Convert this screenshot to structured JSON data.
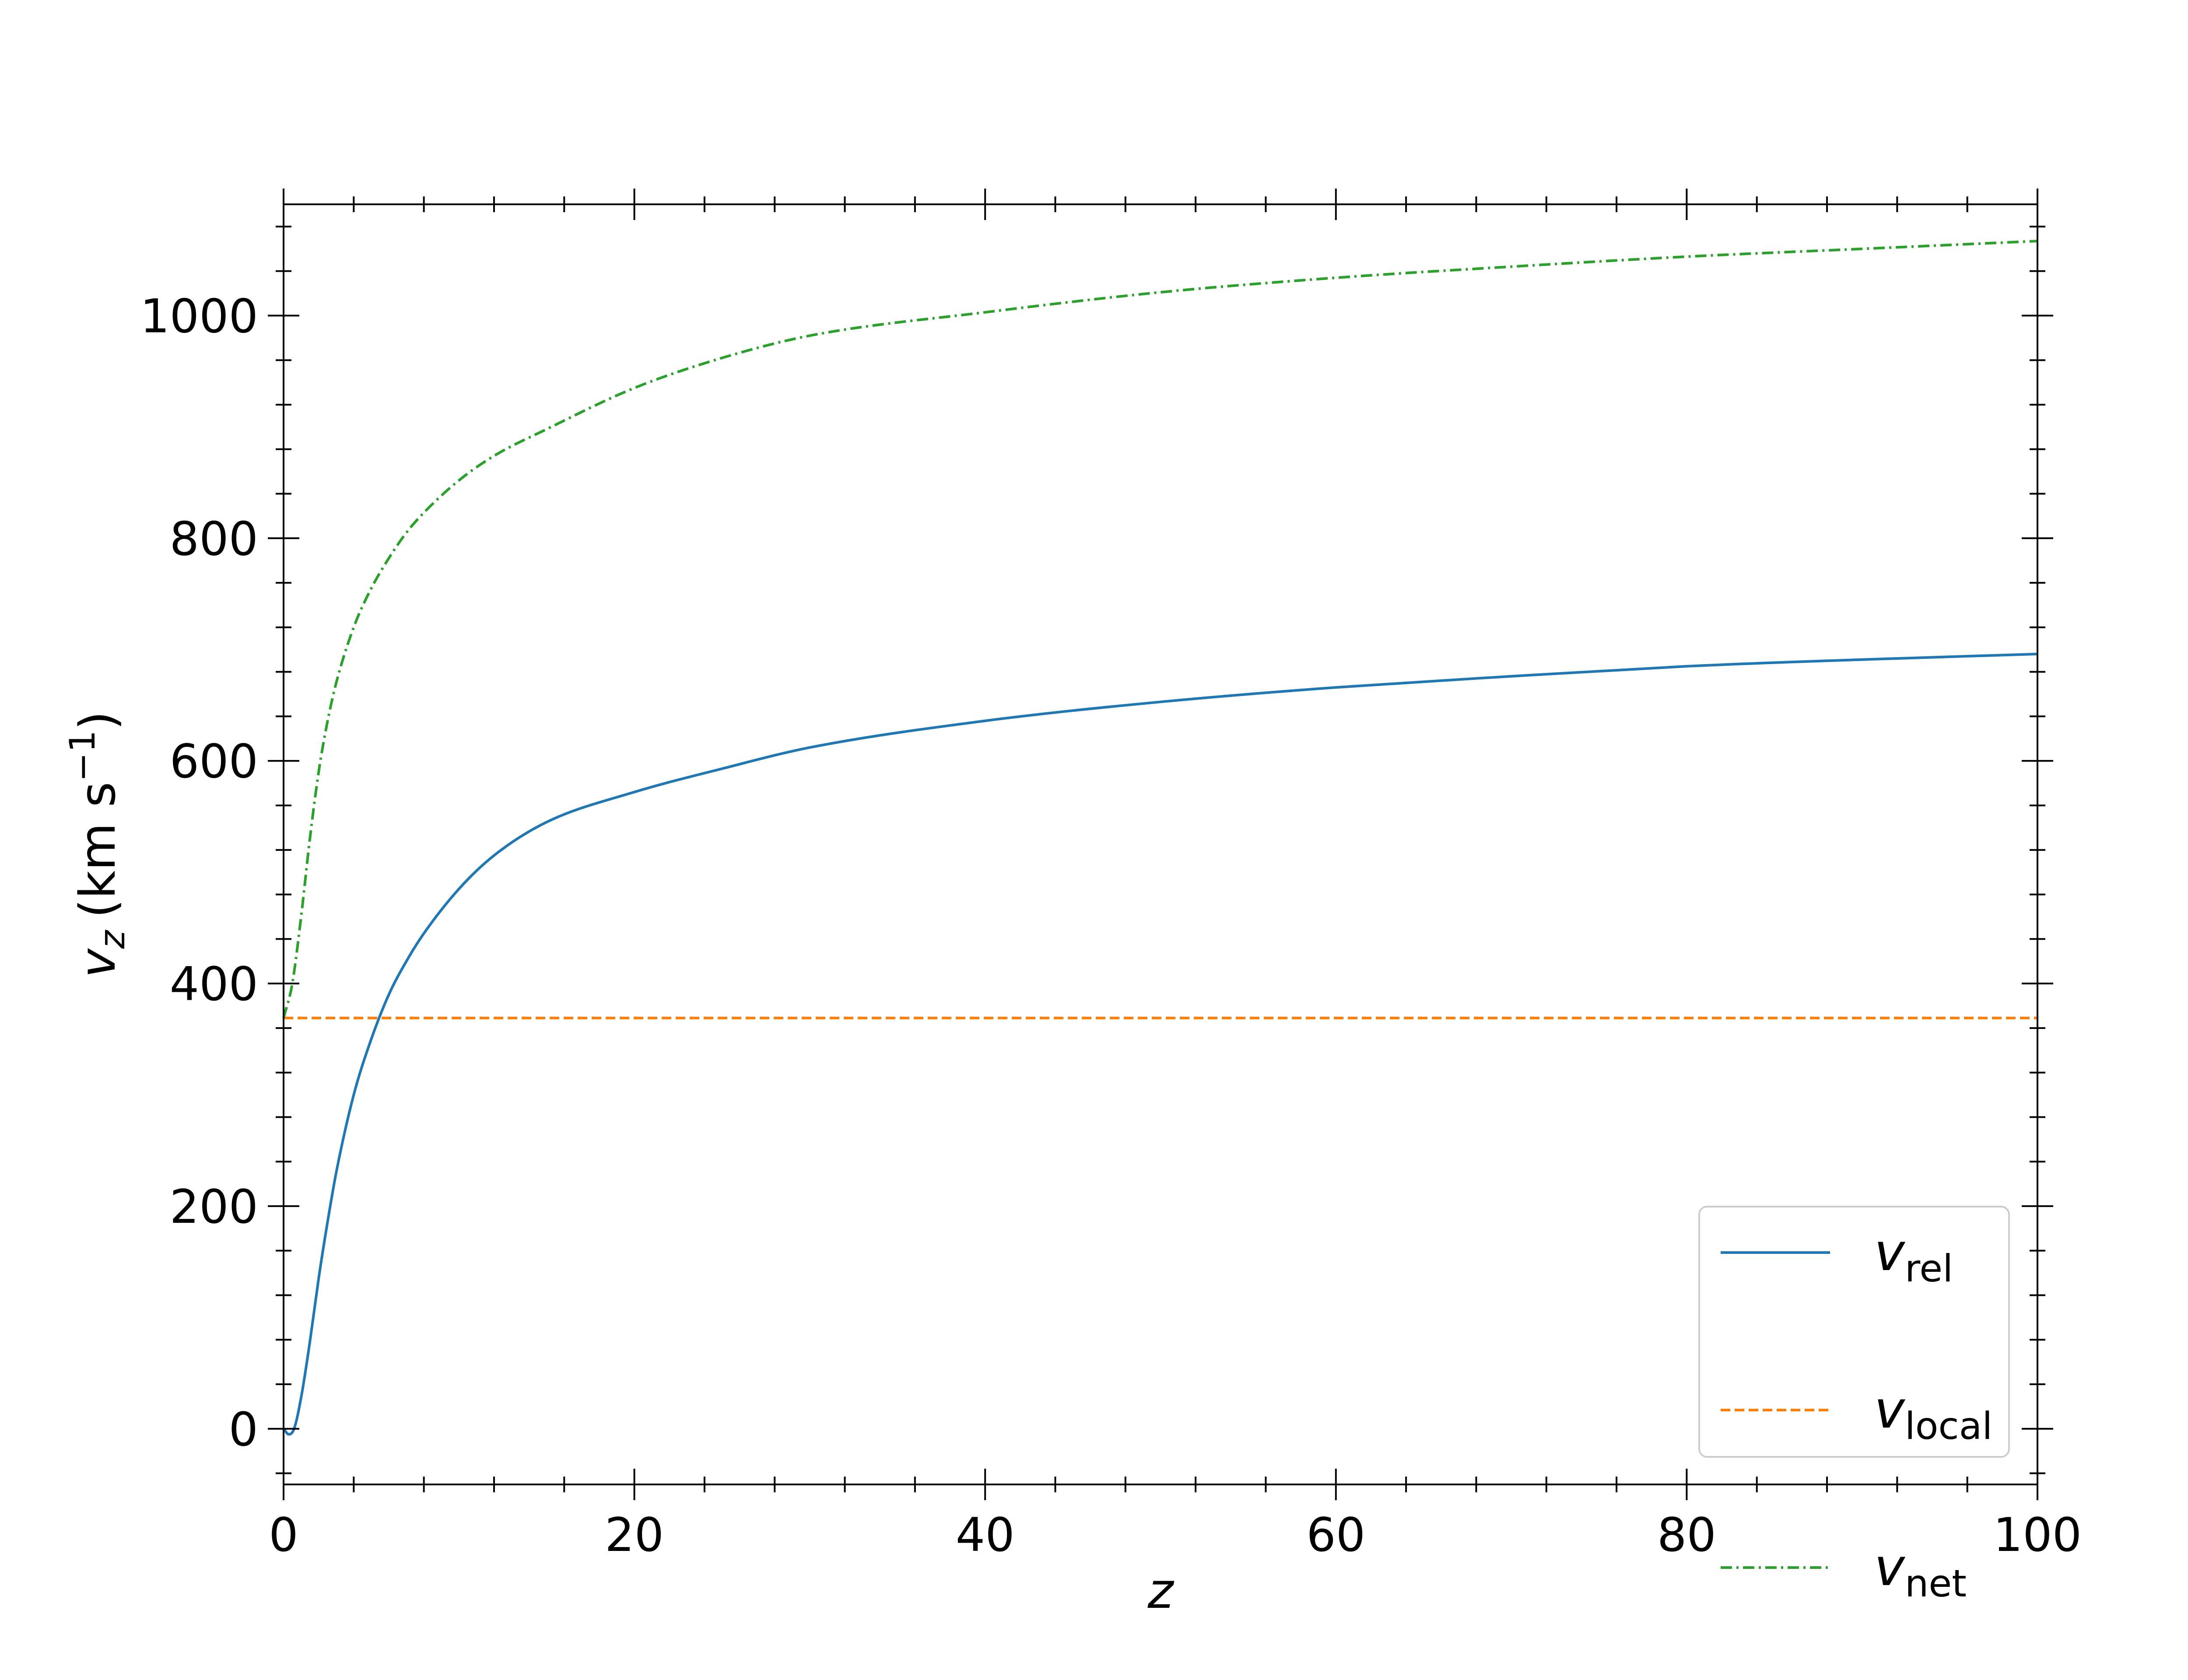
{
  "chart_data": {
    "type": "line",
    "xlim": [
      0,
      100
    ],
    "ylim": [
      -50,
      1100
    ],
    "x_ticks": [
      0,
      20,
      40,
      60,
      80,
      100
    ],
    "y_ticks": [
      0,
      200,
      400,
      600,
      800,
      1000
    ],
    "x_minor_step": 4,
    "y_minor_step": 40,
    "xlabel": "z",
    "ylabel": {
      "symbol": "v",
      "subscript": "z",
      "unit": "(km s",
      "exponent": "−1",
      "close": ")"
    },
    "legend": {
      "placement": "lower-right"
    },
    "grid": false,
    "series": [
      {
        "key": "rel",
        "name": "v",
        "name_sub": "rel",
        "color": "#1f77b4",
        "style": "solid",
        "x": [
          0,
          0.3,
          0.6,
          1,
          1.5,
          2,
          2.5,
          3,
          4,
          5,
          6,
          7,
          8,
          10,
          12,
          15,
          20,
          25,
          30,
          40,
          50,
          60,
          70,
          80,
          90,
          100
        ],
        "values": [
          0,
          -5,
          0,
          28,
          78,
          135,
          185,
          230,
          300,
          350,
          390,
          420,
          445,
          485,
          515,
          545,
          572,
          593,
          612,
          636,
          653,
          666,
          676,
          685,
          691,
          696
        ]
      },
      {
        "key": "local",
        "name": "v",
        "name_sub": "local",
        "color": "#ff7f0e",
        "style": "dashed",
        "x": [
          0,
          100
        ],
        "values": [
          369,
          369
        ]
      },
      {
        "key": "net",
        "name": "v",
        "name_sub": "net",
        "color": "#2ca02c",
        "style": "dashdot",
        "x": [
          0,
          0.5,
          1,
          1.5,
          2,
          2.5,
          3,
          4,
          5,
          6,
          7,
          8,
          10,
          12,
          15,
          20,
          25,
          30,
          40,
          50,
          60,
          70,
          80,
          90,
          100
        ],
        "values": [
          369,
          400,
          460,
          530,
          590,
          635,
          670,
          720,
          755,
          782,
          805,
          823,
          852,
          874,
          898,
          935,
          962,
          982,
          1003,
          1021,
          1034,
          1044,
          1053,
          1060,
          1067
        ]
      }
    ]
  }
}
